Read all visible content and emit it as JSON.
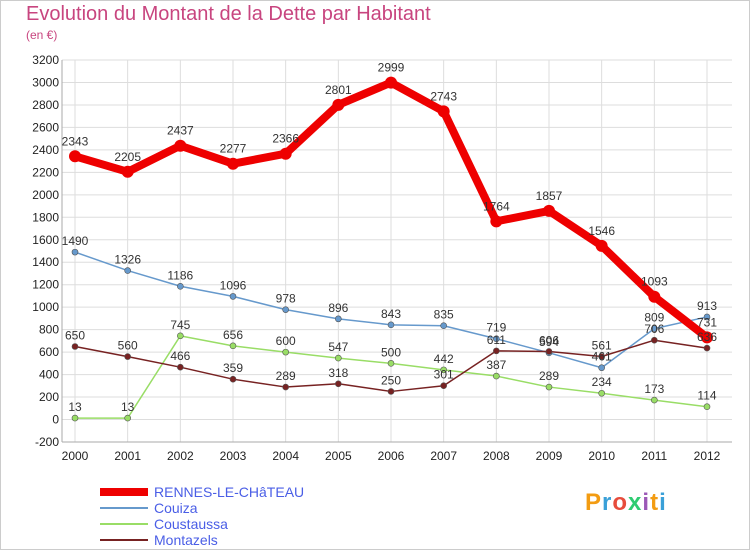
{
  "header": {
    "title": "Evolution du Montant de la Dette par Habitant",
    "subtitle": "(en €)"
  },
  "logo": {
    "text": "Proxiti",
    "colors": [
      "#f39c12",
      "#3aa0d8",
      "#e74c3c",
      "#2ecc71",
      "#9b59b6",
      "#f39c12",
      "#3aa0d8"
    ]
  },
  "chart_data": {
    "type": "line",
    "title": "Evolution du Montant de la Dette par Habitant",
    "subtitle": "(en €)",
    "x": [
      "2000",
      "2001",
      "2002",
      "2003",
      "2004",
      "2005",
      "2006",
      "2007",
      "2008",
      "2009",
      "2010",
      "2011",
      "2012"
    ],
    "ylim": [
      -200,
      3200
    ],
    "yticks": [
      -200,
      0,
      200,
      400,
      600,
      800,
      1000,
      1200,
      1400,
      1600,
      1800,
      2000,
      2200,
      2400,
      2600,
      2800,
      3000,
      3200
    ],
    "grid": true,
    "legend_position": "bottom-left",
    "series": [
      {
        "name": "RENNES-LE-CHâTEAU",
        "color": "#ee0000",
        "width": 8,
        "marker": 6,
        "values": [
          2343,
          2205,
          2437,
          2277,
          2366,
          2801,
          2999,
          2743,
          1764,
          1857,
          1546,
          1093,
          731
        ],
        "labels": [
          "2343",
          "2205",
          "2437",
          "2277",
          "2366",
          "2801",
          "2999",
          "2743",
          "1764",
          "1857",
          "1546",
          "1093",
          "731"
        ]
      },
      {
        "name": "Couiza",
        "color": "#6699cc",
        "width": 1.5,
        "marker": 3,
        "values": [
          1490,
          1326,
          1186,
          1096,
          978,
          896,
          843,
          835,
          719,
          594,
          461,
          809,
          913
        ],
        "labels": [
          "1490",
          "1326",
          "1186",
          "1096",
          "978",
          "896",
          "843",
          "835",
          "719",
          "594",
          "461",
          "809",
          "913"
        ]
      },
      {
        "name": "Coustaussa",
        "color": "#99dd66",
        "width": 1.5,
        "marker": 3,
        "values": [
          13,
          13,
          745,
          656,
          600,
          547,
          500,
          442,
          387,
          289,
          234,
          173,
          114
        ],
        "labels": [
          "13",
          "13",
          "745",
          "656",
          "600",
          "547",
          "500",
          "442",
          "387",
          "289",
          "234",
          "173",
          "114"
        ]
      },
      {
        "name": "Montazels",
        "color": "#772222",
        "width": 1.5,
        "marker": 3,
        "values": [
          650,
          560,
          466,
          359,
          289,
          318,
          250,
          301,
          611,
          606,
          561,
          706,
          636
        ],
        "labels": [
          "650",
          "560",
          "466",
          "359",
          "289",
          "318",
          "250",
          "301",
          "611",
          "606",
          "561",
          "706",
          "636"
        ]
      }
    ]
  }
}
